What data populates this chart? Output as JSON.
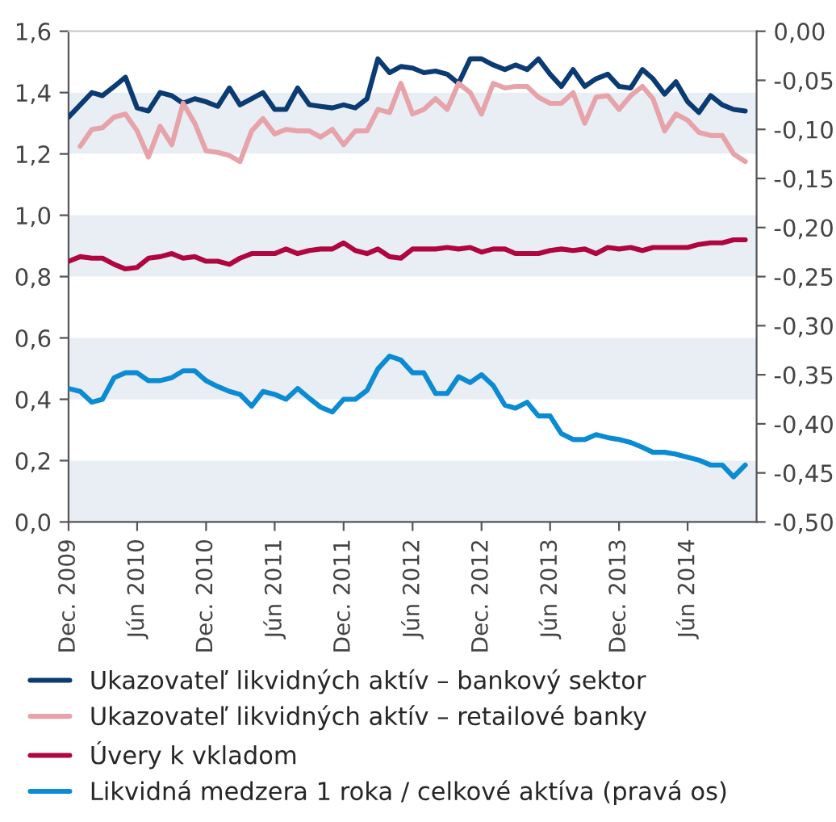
{
  "chart_data": {
    "type": "line",
    "x": [
      "2009-12",
      "2010-01",
      "2010-02",
      "2010-03",
      "2010-04",
      "2010-05",
      "2010-06",
      "2010-07",
      "2010-08",
      "2010-09",
      "2010-10",
      "2010-11",
      "2010-12",
      "2011-01",
      "2011-02",
      "2011-03",
      "2011-04",
      "2011-05",
      "2011-06",
      "2011-07",
      "2011-08",
      "2011-09",
      "2011-10",
      "2011-11",
      "2011-12",
      "2012-01",
      "2012-02",
      "2012-03",
      "2012-04",
      "2012-05",
      "2012-06",
      "2012-07",
      "2012-08",
      "2012-09",
      "2012-10",
      "2012-11",
      "2012-12",
      "2013-01",
      "2013-02",
      "2013-03",
      "2013-04",
      "2013-05",
      "2013-06",
      "2013-07",
      "2013-08",
      "2013-09",
      "2013-10",
      "2013-11",
      "2013-12",
      "2014-01",
      "2014-02",
      "2014-03",
      "2014-04",
      "2014-05",
      "2014-06",
      "2014-07",
      "2014-08",
      "2014-09",
      "2014-10",
      "2014-11"
    ],
    "series": [
      {
        "name": "Ukazovateľ likvidných aktív – bankový sektor",
        "color": "#0b3b73",
        "values": [
          1.32,
          1.36,
          1.4,
          1.39,
          1.42,
          1.45,
          1.35,
          1.34,
          1.4,
          1.39,
          1.365,
          1.38,
          1.37,
          1.355,
          1.415,
          1.36,
          1.38,
          1.4,
          1.345,
          1.345,
          1.415,
          1.36,
          1.355,
          1.35,
          1.36,
          1.35,
          1.38,
          1.51,
          1.465,
          1.485,
          1.48,
          1.465,
          1.47,
          1.46,
          1.43,
          1.51,
          1.51,
          1.49,
          1.475,
          1.49,
          1.475,
          1.51,
          1.46,
          1.42,
          1.475,
          1.42,
          1.445,
          1.46,
          1.42,
          1.415,
          1.475,
          1.445,
          1.395,
          1.435,
          1.37,
          1.335,
          1.39,
          1.36,
          1.345,
          1.34
        ]
      },
      {
        "name": "Ukazovateľ likvidných aktív – retailové banky",
        "color": "#e6a3a9",
        "values": [
          null,
          1.225,
          1.28,
          1.285,
          1.32,
          1.33,
          1.275,
          1.19,
          1.29,
          1.23,
          1.365,
          1.3,
          1.21,
          1.205,
          1.195,
          1.175,
          1.275,
          1.315,
          1.265,
          1.28,
          1.275,
          1.275,
          1.255,
          1.28,
          1.23,
          1.275,
          1.275,
          1.345,
          1.335,
          1.43,
          1.33,
          1.345,
          1.38,
          1.345,
          1.43,
          1.4,
          1.33,
          1.43,
          1.415,
          1.42,
          1.42,
          1.385,
          1.365,
          1.365,
          1.4,
          1.3,
          1.385,
          1.39,
          1.345,
          1.39,
          1.42,
          1.38,
          1.275,
          1.33,
          1.31,
          1.27,
          1.26,
          1.26,
          1.2,
          1.175
        ]
      },
      {
        "name": "Úvery k vkladom",
        "color": "#b0063f",
        "values": [
          0.85,
          0.865,
          0.86,
          0.86,
          0.84,
          0.825,
          0.83,
          0.86,
          0.865,
          0.875,
          0.86,
          0.865,
          0.85,
          0.85,
          0.84,
          0.86,
          0.875,
          0.875,
          0.875,
          0.89,
          0.875,
          0.885,
          0.89,
          0.89,
          0.91,
          0.885,
          0.875,
          0.89,
          0.865,
          0.86,
          0.89,
          0.89,
          0.89,
          0.895,
          0.89,
          0.895,
          0.88,
          0.89,
          0.89,
          0.875,
          0.875,
          0.875,
          0.885,
          0.89,
          0.885,
          0.89,
          0.875,
          0.895,
          0.89,
          0.895,
          0.885,
          0.895,
          0.895,
          0.895,
          0.895,
          0.905,
          0.91,
          0.91,
          0.92,
          0.92
        ]
      },
      {
        "name": "Likvidná medzera 1 roka / celkové aktíva (pravá os)",
        "color": "#0a8bd3",
        "axis": "y2",
        "values": [
          -0.364,
          -0.367,
          -0.378,
          -0.375,
          -0.353,
          -0.348,
          -0.348,
          -0.356,
          -0.356,
          -0.353,
          -0.346,
          -0.346,
          -0.356,
          -0.362,
          -0.367,
          -0.37,
          -0.382,
          -0.367,
          -0.37,
          -0.375,
          -0.364,
          -0.374,
          -0.383,
          -0.388,
          -0.375,
          -0.375,
          -0.366,
          -0.344,
          -0.331,
          -0.335,
          -0.348,
          -0.348,
          -0.369,
          -0.369,
          -0.352,
          -0.358,
          -0.35,
          -0.361,
          -0.381,
          -0.384,
          -0.378,
          -0.392,
          -0.392,
          -0.41,
          -0.416,
          -0.416,
          -0.411,
          -0.414,
          -0.416,
          -0.419,
          -0.424,
          -0.429,
          -0.429,
          -0.431,
          -0.434,
          -0.437,
          -0.442,
          -0.442,
          -0.454,
          -0.442
        ]
      }
    ],
    "xlim": [
      "2009-12",
      "2014-12"
    ],
    "xticks": [
      {
        "value": "2009-12",
        "label": "Dec. 2009"
      },
      {
        "value": "2010-06",
        "label": "Jún 2010"
      },
      {
        "value": "2010-12",
        "label": "Dec. 2010"
      },
      {
        "value": "2011-06",
        "label": "Jún 2011"
      },
      {
        "value": "2011-12",
        "label": "Dec. 2011"
      },
      {
        "value": "2012-06",
        "label": "Jún 2012"
      },
      {
        "value": "2012-12",
        "label": "Dec. 2012"
      },
      {
        "value": "2013-06",
        "label": "Jún 2013"
      },
      {
        "value": "2013-12",
        "label": "Dec. 2013"
      },
      {
        "value": "2014-06",
        "label": "Jún 2014"
      }
    ],
    "ylim": [
      0,
      1.6
    ],
    "yticks": [
      {
        "value": 0,
        "label": "0,0"
      },
      {
        "value": 0.2,
        "label": "0,2"
      },
      {
        "value": 0.4,
        "label": "0,4"
      },
      {
        "value": 0.6,
        "label": "0,6"
      },
      {
        "value": 0.8,
        "label": "0,8"
      },
      {
        "value": 1.0,
        "label": "1,0"
      },
      {
        "value": 1.2,
        "label": "1,2"
      },
      {
        "value": 1.4,
        "label": "1,4"
      },
      {
        "value": 1.6,
        "label": "1,6"
      }
    ],
    "y2lim": [
      -0.5,
      0
    ],
    "y2ticks": [
      {
        "value": -0.5,
        "label": "-0,50"
      },
      {
        "value": -0.45,
        "label": "-0,45"
      },
      {
        "value": -0.4,
        "label": "-0,40"
      },
      {
        "value": -0.35,
        "label": "-0,35"
      },
      {
        "value": -0.3,
        "label": "-0,30"
      },
      {
        "value": -0.25,
        "label": "-0,25"
      },
      {
        "value": -0.2,
        "label": "-0,20"
      },
      {
        "value": -0.15,
        "label": "-0,15"
      },
      {
        "value": -0.1,
        "label": "-0,10"
      },
      {
        "value": -0.05,
        "label": "-0,05"
      },
      {
        "value": 0,
        "label": "0,00"
      }
    ],
    "bands": [
      {
        "axis": "y",
        "from": 0,
        "to": 0.2,
        "color": "#e9edf4"
      },
      {
        "axis": "y",
        "from": 0.4,
        "to": 0.6,
        "color": "#e9edf4"
      },
      {
        "axis": "y",
        "from": 0.8,
        "to": 1.0,
        "color": "#e9edf4"
      },
      {
        "axis": "y",
        "from": 1.2,
        "to": 1.4,
        "color": "#e9edf4"
      }
    ],
    "grid": false,
    "legend": "bottom",
    "marker": "none",
    "line_style": "solid"
  }
}
